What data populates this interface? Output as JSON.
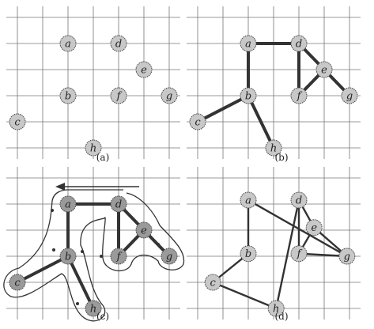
{
  "figure": {
    "panels": [
      {
        "caption": "(a)",
        "nodes": [
          "a",
          "d",
          "e",
          "b",
          "f",
          "g",
          "c",
          "h"
        ],
        "edges": [],
        "overlay": "none"
      },
      {
        "caption": "(b)",
        "nodes": [
          "a",
          "d",
          "e",
          "b",
          "f",
          "g",
          "c",
          "h"
        ],
        "edges": [
          [
            "a",
            "d"
          ],
          [
            "a",
            "b"
          ],
          [
            "b",
            "c"
          ],
          [
            "b",
            "h"
          ],
          [
            "d",
            "e"
          ],
          [
            "d",
            "f"
          ],
          [
            "e",
            "f"
          ],
          [
            "e",
            "g"
          ]
        ],
        "overlay": "none"
      },
      {
        "caption": "(c)",
        "nodes": [
          "a",
          "d",
          "e",
          "b",
          "f",
          "g",
          "c",
          "h"
        ],
        "edges": [
          [
            "a",
            "d"
          ],
          [
            "a",
            "b"
          ],
          [
            "b",
            "c"
          ],
          [
            "b",
            "h"
          ],
          [
            "d",
            "e"
          ],
          [
            "d",
            "f"
          ],
          [
            "e",
            "f"
          ],
          [
            "e",
            "g"
          ]
        ],
        "overlay": "walk-contour-with-arrow"
      },
      {
        "caption": "(d)",
        "nodes": [
          "a",
          "d",
          "e",
          "b",
          "f",
          "g",
          "c",
          "h"
        ],
        "edges": [
          [
            "a",
            "b"
          ],
          [
            "b",
            "c"
          ],
          [
            "c",
            "h"
          ],
          [
            "h",
            "d"
          ],
          [
            "d",
            "f"
          ],
          [
            "f",
            "g"
          ],
          [
            "g",
            "e"
          ],
          [
            "e",
            "d"
          ],
          [
            "a",
            "g"
          ],
          [
            "f",
            "e"
          ]
        ],
        "overlay": "none"
      }
    ],
    "colors": {
      "grid": "#777777",
      "node_fill": "#c8c8c8",
      "node_fill_dark": "#9a9a9a",
      "node_stroke": "#444444",
      "edge": "#333333",
      "text": "#222222"
    }
  }
}
